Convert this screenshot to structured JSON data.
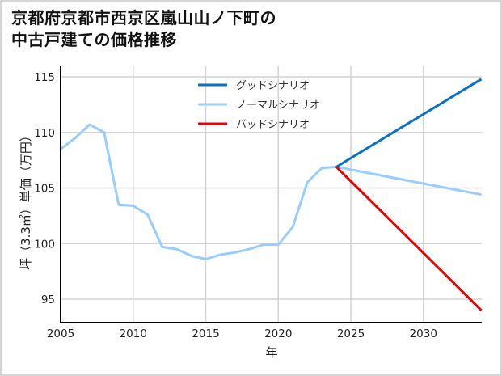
{
  "title_lines": [
    "京都府京都市西京区嵐山山ノ下町の",
    "中古戸建ての価格推移"
  ],
  "chart_data": {
    "type": "line",
    "title": "京都府京都市西京区嵐山山ノ下町の中古戸建ての価格推移",
    "xlabel": "年",
    "ylabel": "坪（3.3㎡）単価（万円）",
    "xlim": [
      2005,
      2034
    ],
    "ylim": [
      93,
      116
    ],
    "x_ticks": [
      2005,
      2010,
      2015,
      2020,
      2025,
      2030
    ],
    "y_ticks": [
      95,
      100,
      105,
      110,
      115
    ],
    "grid": true,
    "legend_position": "upper center",
    "series": [
      {
        "name": "グッドシナリオ",
        "color": "#0a72c4",
        "x": [
          2024,
          2034
        ],
        "values": [
          106.9,
          114.8
        ]
      },
      {
        "name": "ノーマルシナリオ",
        "color": "#99ccff",
        "x": [
          2005,
          2006,
          2007,
          2008,
          2009,
          2010,
          2011,
          2012,
          2013,
          2014,
          2015,
          2016,
          2017,
          2018,
          2019,
          2020,
          2021,
          2022,
          2023,
          2024,
          2034
        ],
        "values": [
          108.5,
          109.5,
          110.7,
          110.0,
          103.5,
          103.4,
          102.6,
          99.7,
          99.5,
          98.9,
          98.6,
          99.0,
          99.2,
          99.5,
          99.9,
          99.9,
          101.5,
          105.5,
          106.8,
          106.9,
          104.4
        ]
      },
      {
        "name": "バッドシナリオ",
        "color": "#ee0000",
        "x": [
          2024,
          2034
        ],
        "values": [
          106.9,
          94.0
        ]
      }
    ]
  }
}
